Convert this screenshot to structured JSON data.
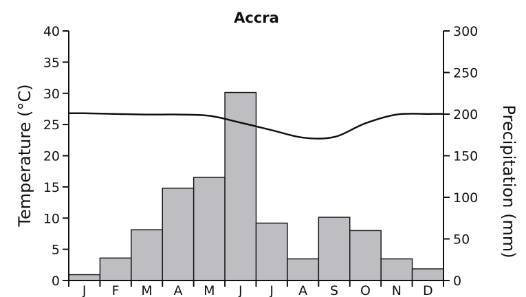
{
  "chart_data": {
    "type": "bar",
    "title": "Accra",
    "categories": [
      "J",
      "F",
      "M",
      "A",
      "M",
      "J",
      "J",
      "A",
      "S",
      "O",
      "N",
      "D"
    ],
    "series": [
      {
        "type": "bar",
        "axis": "right",
        "values": [
          7,
          27,
          61,
          111,
          124,
          226,
          69,
          26,
          76,
          60,
          26,
          14
        ]
      },
      {
        "type": "line",
        "axis": "left",
        "values": [
          26.8,
          26.7,
          26.6,
          26.6,
          26.4,
          25.3,
          24.1,
          22.9,
          23.0,
          25.2,
          26.6,
          26.7
        ]
      }
    ],
    "ylabel": "Temperature (°C)",
    "ylim": [
      0,
      40
    ],
    "yticks": [
      0,
      5,
      10,
      15,
      20,
      25,
      30,
      35,
      40
    ],
    "y2label": "Precipitation (mm)",
    "y2lim": [
      0,
      300
    ],
    "y2ticks": [
      0,
      50,
      100,
      150,
      200,
      250,
      300
    ],
    "grid": false,
    "colors": {
      "bar_fill": "#bdbdc2",
      "bar_stroke": "#1a1a1a",
      "line": "#111111",
      "axis": "#111111"
    }
  }
}
